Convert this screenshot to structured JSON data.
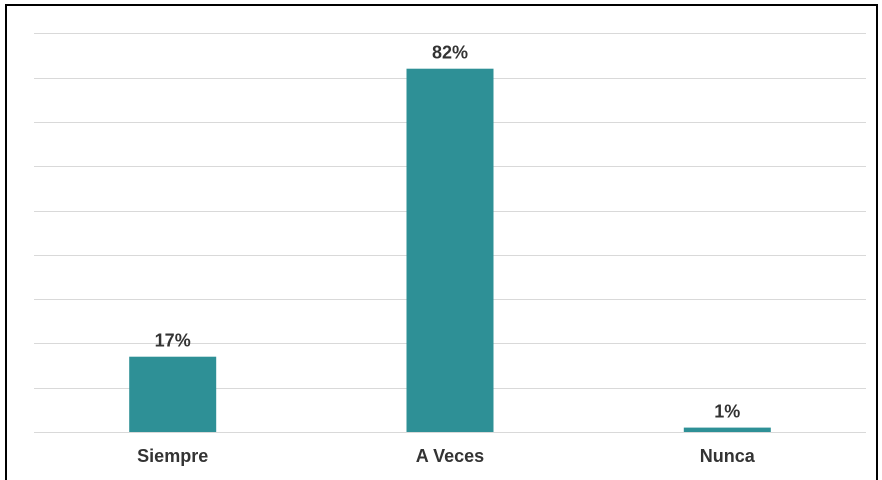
{
  "chart_data": {
    "type": "bar",
    "categories": [
      "Siempre",
      "A Veces",
      "Nunca"
    ],
    "values": [
      17,
      82,
      1
    ],
    "data_labels": [
      "17%",
      "82%",
      "1%"
    ],
    "title": "",
    "xlabel": "",
    "ylabel": "",
    "ylim": [
      0,
      90
    ],
    "grid": true,
    "bar_color": "#2E9096",
    "gridline_color": "#D9D9D9"
  }
}
